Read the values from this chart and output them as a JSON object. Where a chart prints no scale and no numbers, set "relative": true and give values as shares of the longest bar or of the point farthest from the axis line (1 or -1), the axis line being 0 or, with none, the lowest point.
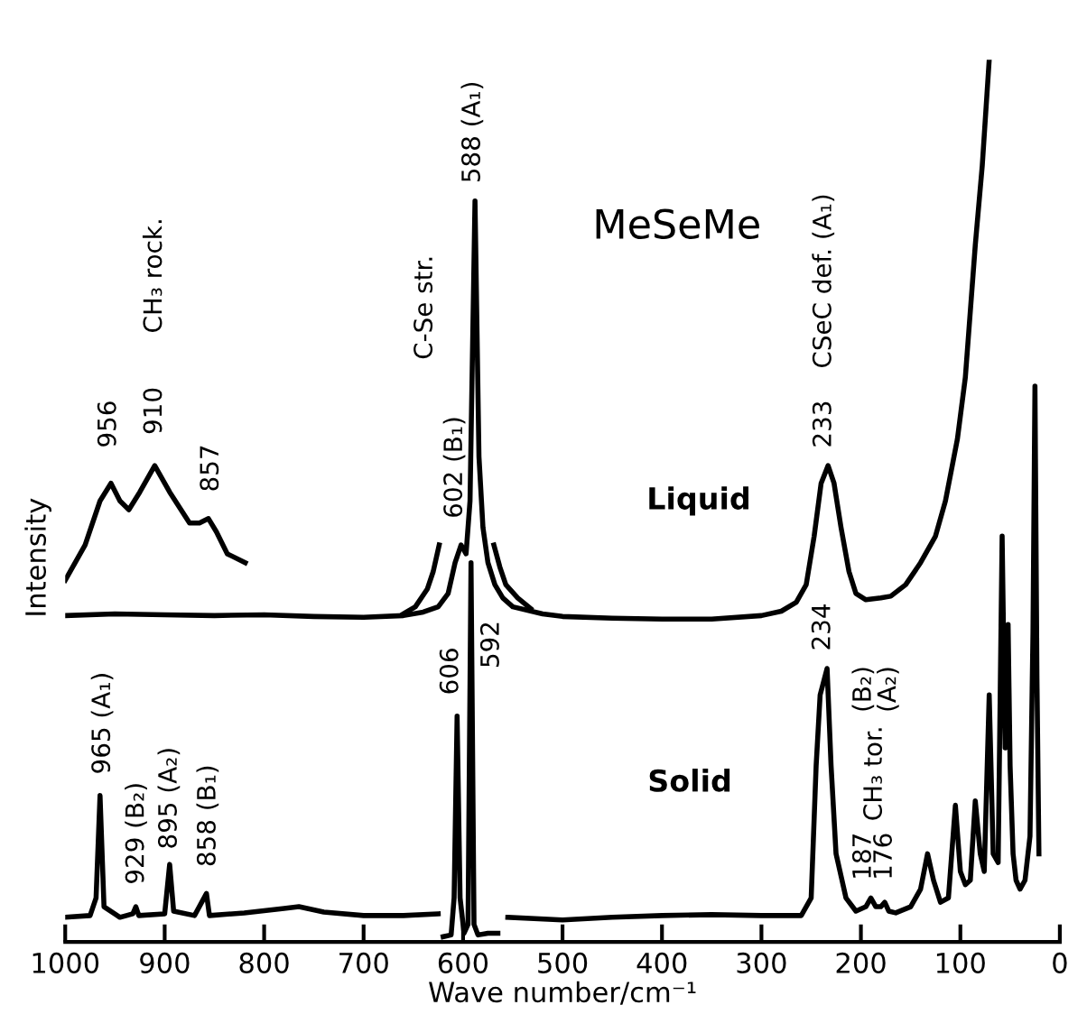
{
  "chart_data": {
    "type": "line",
    "title": "MeSeMe",
    "xlabel": "Wave number/cm⁻¹",
    "ylabel": "Intensity",
    "relative": true,
    "xlim": [
      1000,
      0
    ],
    "xticks": [
      1000,
      900,
      800,
      700,
      600,
      500,
      400,
      300,
      200,
      100,
      0
    ],
    "grid": false,
    "legend": false,
    "marker": "none",
    "line_style": "solid",
    "series": [
      {
        "color": "#000000",
        "x": [
          1000,
          950,
          900,
          850,
          800,
          750,
          700,
          660,
          640,
          625,
          615,
          608,
          602,
          597,
          593,
          588,
          584,
          580,
          575,
          568,
          560,
          550,
          520,
          500,
          450,
          400,
          350,
          300,
          280,
          265,
          255,
          247,
          240,
          233,
          227,
          220,
          212,
          205,
          195,
          180,
          170,
          155,
          140,
          125,
          115,
          103,
          95,
          85,
          78,
          71
        ],
        "values": [
          0.37,
          0.372,
          0.371,
          0.37,
          0.371,
          0.369,
          0.368,
          0.37,
          0.374,
          0.38,
          0.395,
          0.43,
          0.45,
          0.44,
          0.5,
          0.84,
          0.55,
          0.47,
          0.43,
          0.405,
          0.39,
          0.38,
          0.372,
          0.369,
          0.367,
          0.366,
          0.366,
          0.37,
          0.375,
          0.385,
          0.405,
          0.46,
          0.52,
          0.54,
          0.52,
          0.47,
          0.42,
          0.395,
          0.388,
          0.39,
          0.392,
          0.405,
          0.43,
          0.46,
          0.5,
          0.57,
          0.64,
          0.79,
          0.88,
          1.0
        ]
      },
      {
        "color": "#000000",
        "x": [
          1000,
          980,
          965,
          954,
          945,
          936,
          925,
          910,
          895,
          875,
          865,
          856,
          848,
          837,
          819
        ],
        "values": [
          0.41,
          0.45,
          0.5,
          0.52,
          0.5,
          0.49,
          0.51,
          0.54,
          0.51,
          0.475,
          0.475,
          0.48,
          0.465,
          0.44,
          0.43
        ]
      },
      {
        "color": "#000000",
        "x": [
          660,
          648,
          636,
          630,
          624
        ],
        "values": [
          0.372,
          0.38,
          0.4,
          0.42,
          0.45
        ]
      },
      {
        "color": "#000000",
        "x": [
          569,
          563,
          557,
          545,
          532
        ],
        "values": [
          0.45,
          0.425,
          0.405,
          0.39,
          0.378
        ]
      },
      {
        "color": "#000000",
        "x": [
          1000,
          975,
          969,
          965,
          961,
          945,
          932,
          929,
          926,
          900,
          895,
          891,
          870,
          858,
          855,
          820,
          780,
          765,
          740,
          700,
          660,
          625,
          623,
          620,
          612,
          609,
          606,
          603,
          599,
          595,
          592,
          589,
          585,
          575,
          565,
          560,
          555,
          500,
          450,
          400,
          350,
          300,
          260,
          250,
          245,
          241,
          234,
          230,
          225,
          215,
          205,
          195,
          190,
          185,
          180,
          176,
          172,
          165,
          150,
          140,
          133,
          127,
          120,
          112,
          105,
          100,
          95,
          90,
          85,
          80,
          76,
          71,
          67,
          62,
          58,
          55,
          52,
          50,
          47,
          44,
          40,
          35,
          30,
          27,
          25,
          23,
          21
        ],
        "values": [
          0.028,
          0.03,
          0.05,
          0.166,
          0.04,
          0.028,
          0.032,
          0.04,
          0.03,
          0.032,
          0.088,
          0.035,
          0.03,
          0.055,
          0.03,
          0.033,
          0.038,
          0.04,
          0.034,
          0.03,
          0.03,
          0.032,
          null,
          0.006,
          0.008,
          0.05,
          0.256,
          0.05,
          0.01,
          0.02,
          0.43,
          0.02,
          0.008,
          0.01,
          0.01,
          null,
          0.028,
          0.025,
          0.028,
          0.03,
          0.031,
          0.03,
          0.03,
          0.05,
          0.2,
          0.28,
          0.31,
          0.2,
          0.1,
          0.05,
          0.035,
          0.04,
          0.05,
          0.04,
          0.04,
          0.045,
          0.035,
          0.033,
          0.04,
          0.06,
          0.1,
          0.07,
          0.045,
          0.05,
          0.155,
          0.08,
          0.065,
          0.07,
          0.16,
          0.1,
          0.08,
          0.28,
          0.1,
          0.09,
          0.46,
          0.22,
          0.36,
          0.2,
          0.1,
          0.07,
          0.06,
          0.07,
          0.12,
          0.35,
          0.63,
          0.3,
          0.1
        ]
      }
    ],
    "annotations": [
      "Liquid",
      "Solid",
      "CH₃ rock.",
      "956",
      "910",
      "857",
      "C-Se str.",
      "602 (B₁)",
      "588 (A₁)",
      "CSeC def. (A₁)",
      "233",
      "965 (A₁)",
      "929 (B₂)",
      "895 (A₂)",
      "858 (B₁)",
      "606",
      "592",
      "234",
      "187",
      "176",
      "CH₃ tor.",
      "(B₂)",
      "(A₂)"
    ]
  }
}
